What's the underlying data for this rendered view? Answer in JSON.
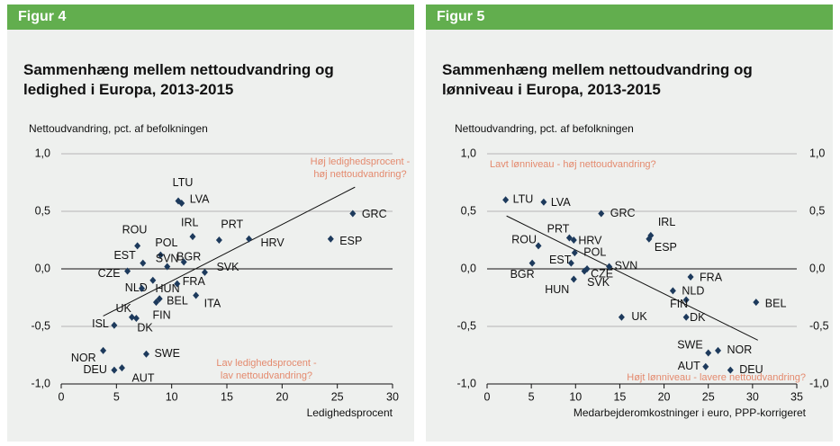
{
  "chart_data": [
    {
      "type": "scatter",
      "figure": "Figur 4",
      "title": "Sammenhæng mellem nettoudvandring og ledighed i Europa, 2013-2015",
      "y_label": "Nettoudvandring, pct. af befolkningen",
      "x_label": "Ledighedsprocent",
      "annotations": [
        "Høj ledighedsprocent -",
        "høj nettoudvandring?",
        "Lav ledighedsprocent -",
        "lav nettoudvandring?"
      ],
      "color": "#1d3a5c",
      "labels": [
        "LTU",
        "LVA",
        "IRL",
        "PRT",
        "HRV",
        "GRC",
        "ESP",
        "ROU",
        "POL",
        "EST",
        "SVN",
        "BGR",
        "CZE",
        "SVK",
        "NLD",
        "HUN",
        "FRA",
        "ITA",
        "BEL",
        "FIN",
        "UK",
        "DK",
        "ISL",
        "NOR",
        "DEU",
        "AUT",
        "SWE"
      ],
      "x": [
        10.6,
        10.9,
        11.9,
        14.3,
        17.0,
        26.4,
        24.4,
        6.9,
        9.0,
        7.4,
        9.6,
        11.1,
        6.0,
        13.0,
        8.3,
        7.3,
        10.5,
        12.2,
        8.9,
        8.6,
        6.4,
        6.8,
        4.8,
        3.8,
        4.8,
        5.5,
        7.7
      ],
      "values": [
        0.59,
        0.57,
        0.28,
        0.25,
        0.26,
        0.48,
        0.26,
        0.2,
        0.12,
        0.05,
        0.02,
        0.06,
        -0.02,
        -0.03,
        -0.1,
        -0.17,
        -0.13,
        -0.23,
        -0.26,
        -0.29,
        -0.42,
        -0.43,
        -0.49,
        -0.71,
        -0.88,
        -0.86,
        -0.74
      ],
      "trend": {
        "x": [
          3.8,
          26.6
        ],
        "y": [
          -0.41,
          0.71
        ]
      },
      "xlim": [
        0,
        30
      ],
      "xticks": [
        0,
        5,
        10,
        15,
        20,
        25,
        30
      ],
      "ylim": [
        -1,
        1
      ],
      "yticks": [
        {
          "value": 1,
          "label": "1,0"
        },
        {
          "value": 0.5,
          "label": "0,5"
        },
        {
          "value": 0,
          "label": "0,0"
        },
        {
          "value": -0.5,
          "label": "-0,5"
        },
        {
          "value": -1,
          "label": "-1,0"
        }
      ],
      "grid": true
    },
    {
      "type": "scatter",
      "figure": "Figur 5",
      "title": "Sammenhæng mellem nettoudvandring og lønniveau i Europa, 2013-2015",
      "y_label": "Nettoudvandring, pct. af befolkningen",
      "x_label": "Medarbejderomkostninger i euro, PPP-korrigeret",
      "annotations": [
        "Lavt lønniveau - høj nettoudvandring?",
        "Højt lønniveau - lavere nettoudvandring?"
      ],
      "color": "#1d3a5c",
      "labels": [
        "LTU",
        "LVA",
        "GRC",
        "PRT",
        "HRV",
        "IRL",
        "ESP",
        "ROU",
        "POL",
        "EST",
        "BGR",
        "CZE",
        "SVN",
        "HUN",
        "SVK",
        "FRA",
        "NLD",
        "FIN",
        "BEL",
        "UK",
        "DK",
        "SWE",
        "NOR",
        "AUT",
        "DEU"
      ],
      "x": [
        2.1,
        6.4,
        12.9,
        9.3,
        9.8,
        18.5,
        18.3,
        5.8,
        9.9,
        9.5,
        5.1,
        11.3,
        13.8,
        9.8,
        11.0,
        23.0,
        21.0,
        22.5,
        30.4,
        15.2,
        22.5,
        25.0,
        26.1,
        24.7,
        27.5
      ],
      "values": [
        0.6,
        0.58,
        0.48,
        0.27,
        0.25,
        0.29,
        0.26,
        0.2,
        0.14,
        0.05,
        0.05,
        0.0,
        0.02,
        -0.09,
        -0.02,
        -0.07,
        -0.19,
        -0.27,
        -0.29,
        -0.42,
        -0.42,
        -0.73,
        -0.71,
        -0.85,
        -0.88
      ],
      "trend": {
        "x": [
          2.2,
          30.6
        ],
        "y": [
          0.46,
          -0.62
        ]
      },
      "xlim": [
        0,
        35
      ],
      "xticks": [
        0,
        5,
        10,
        15,
        20,
        25,
        30,
        35
      ],
      "ylim": [
        -1,
        1
      ],
      "yticks": [
        {
          "value": 1,
          "label": "1,0"
        },
        {
          "value": 0.5,
          "label": "0,5"
        },
        {
          "value": 0,
          "label": "0,0"
        },
        {
          "value": -0.5,
          "label": "-0,5"
        },
        {
          "value": -1,
          "label": "-1,0"
        }
      ],
      "y2lim": [
        -1,
        1
      ],
      "y2ticks": [
        {
          "value": 1,
          "label": "1,0"
        },
        {
          "value": 0.5,
          "label": "0,5"
        },
        {
          "value": 0,
          "label": "0,0"
        },
        {
          "value": -0.5,
          "label": "-0,5"
        },
        {
          "value": -1,
          "label": "-1,0"
        }
      ],
      "grid": true
    }
  ]
}
